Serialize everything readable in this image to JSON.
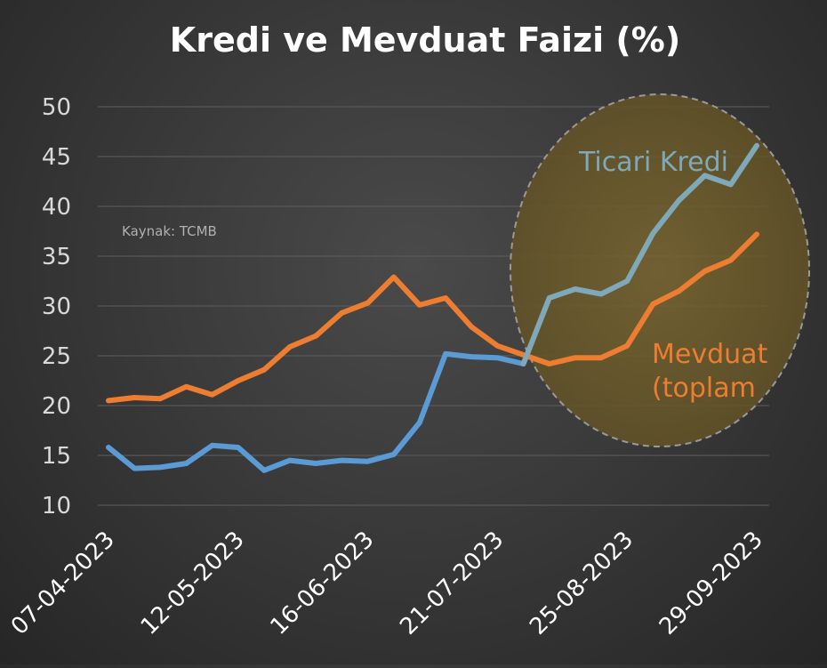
{
  "chart_data": {
    "type": "line",
    "title": "Kredi ve Mevduat Faizi (%)",
    "source_note": "Kaynak: TCMB",
    "ylim": [
      10,
      50
    ],
    "yticks": [
      10,
      15,
      20,
      25,
      30,
      35,
      40,
      45,
      50
    ],
    "x_tick_labels": [
      "07-04-2023",
      "12-05-2023",
      "16-06-2023",
      "21-07-2023",
      "25-08-2023",
      "29-09-2023"
    ],
    "x": [
      "07-04-2023",
      "14-04-2023",
      "21-04-2023",
      "28-04-2023",
      "05-05-2023",
      "12-05-2023",
      "19-05-2023",
      "26-05-2023",
      "02-06-2023",
      "09-06-2023",
      "16-06-2023",
      "23-06-2023",
      "30-06-2023",
      "07-07-2023",
      "14-07-2023",
      "21-07-2023",
      "28-07-2023",
      "04-08-2023",
      "11-08-2023",
      "18-08-2023",
      "25-08-2023",
      "01-09-2023",
      "08-09-2023",
      "15-09-2023",
      "22-09-2023",
      "29-09-2023"
    ],
    "grid": true,
    "legend": "none",
    "series": [
      {
        "name": "Ticari Kredi",
        "color": "#5b9bd5",
        "label_color": "#7fa8b9",
        "values": [
          15.8,
          13.7,
          13.8,
          14.2,
          16.0,
          15.8,
          13.5,
          14.5,
          14.2,
          14.5,
          14.4,
          15.1,
          18.3,
          25.2,
          24.9,
          24.8,
          24.2,
          30.8,
          31.7,
          31.2,
          32.5,
          37.3,
          40.6,
          43.1,
          42.2,
          46.1
        ]
      },
      {
        "name": "Mevduat (toplam",
        "color": "#ed7d31",
        "label_color": "#ed7d31",
        "values": [
          20.5,
          20.8,
          20.7,
          21.9,
          21.1,
          22.5,
          23.6,
          25.9,
          27.0,
          29.3,
          30.3,
          32.9,
          30.1,
          30.8,
          27.9,
          26.0,
          25.1,
          24.2,
          24.8,
          24.8,
          26.0,
          30.2,
          31.5,
          33.5,
          34.6,
          37.2
        ]
      }
    ],
    "highlight": {
      "shape": "ellipse",
      "fill": "#6b5a2a",
      "stroke": "#999999",
      "style": "dashed"
    }
  }
}
